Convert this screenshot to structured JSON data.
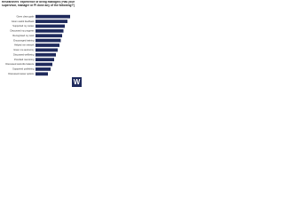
{
  "chart_data": {
    "type": "barh",
    "title": "Researchers' experience of being managed ('Has your supervisor, manager or PI done any of the following?')",
    "categories": [
      "Given clear goals",
      "Given useful feedback",
      "Supported my career",
      "Discussed my progress",
      "Recognised my work",
      "Encouraged training",
      "Helped me network",
      "Given me autonomy",
      "Discussed wellbeing",
      "Provided mentoring",
      "Discussed work-life balance",
      "Supported publishing",
      "Discussed career options"
    ],
    "values": [
      78,
      72,
      66,
      63,
      60,
      57,
      54,
      50,
      46,
      42,
      38,
      34,
      28
    ],
    "color": "#1f2a5c",
    "xlim": [
      0,
      100
    ],
    "logo": "W"
  }
}
